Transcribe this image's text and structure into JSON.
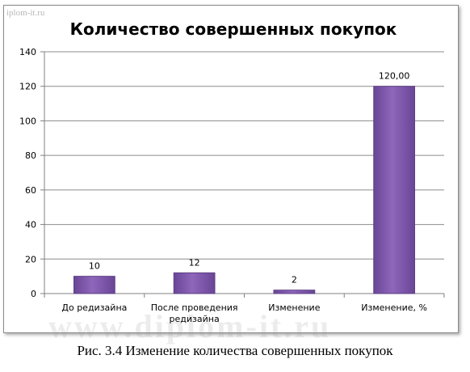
{
  "watermark_top": "iplom-it.ru",
  "watermark_bottom": "www.diplom-it.ru",
  "caption": "Рис. 3.4 Изменение количества совершенных покупок",
  "chart_data": {
    "type": "bar",
    "title": "Количество совершенных покупок",
    "categories": [
      [
        "До редизайна"
      ],
      [
        "После проведения",
        "редизайна"
      ],
      [
        "Изменение"
      ],
      [
        "Изменение, %"
      ]
    ],
    "values": [
      10,
      12,
      2,
      120
    ],
    "data_labels": [
      "10",
      "12",
      "2",
      "120,00"
    ],
    "ylim": [
      0,
      140
    ],
    "yticks": [
      0,
      20,
      40,
      60,
      80,
      100,
      120,
      140
    ],
    "grid": true,
    "bar_color": "#7f5aa8",
    "bar_edge_color": "#5e3f85"
  }
}
